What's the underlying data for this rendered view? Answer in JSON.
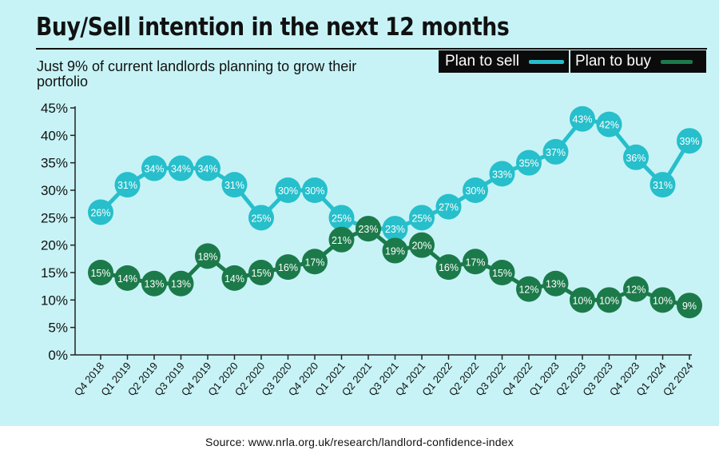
{
  "title": "Buy/Sell intention in the next 12 months",
  "subtitle": "Just 9% of current landlords planning to grow their portfolio",
  "source": "Source: www.nrla.org.uk/research/landlord-confidence-index",
  "colors": {
    "background": "#c7f3f6",
    "sell": "#26bfcb",
    "buy": "#1c7a4a",
    "label_text": "#ffffff",
    "axis": "#222222"
  },
  "chart_data": {
    "type": "line",
    "title": "Buy/Sell intention in the next 12 months",
    "subtitle": "Just 9% of current landlords planning to grow their portfolio",
    "xlabel": "",
    "ylabel": "",
    "ylim": [
      0,
      45
    ],
    "yticks": [
      "0%",
      "5%",
      "10%",
      "15%",
      "20%",
      "25%",
      "30%",
      "35%",
      "40%",
      "45%"
    ],
    "grid": false,
    "legend": "top-right",
    "categories": [
      "Q4 2018",
      "Q1 2019",
      "Q2 2019",
      "Q3 2019",
      "Q4 2019",
      "Q1 2020",
      "Q2 2020",
      "Q3 2020",
      "Q4 2020",
      "Q1 2021",
      "Q2 2021",
      "Q3 2021",
      "Q4 2021",
      "Q1 2022",
      "Q2 2022",
      "Q3 2022",
      "Q4 2022",
      "Q1 2023",
      "Q2 2023",
      "Q3 2023",
      "Q4 2023",
      "Q1 2024",
      "Q2 2024"
    ],
    "series": [
      {
        "name": "Plan to sell",
        "color": "#26bfcb",
        "values": [
          26,
          31,
          34,
          34,
          34,
          31,
          25,
          30,
          30,
          25,
          23,
          23,
          25,
          27,
          30,
          33,
          35,
          37,
          43,
          42,
          36,
          31,
          39
        ]
      },
      {
        "name": "Plan to buy",
        "color": "#1c7a4a",
        "values": [
          15,
          14,
          13,
          13,
          18,
          14,
          15,
          16,
          17,
          21,
          23,
          19,
          20,
          16,
          17,
          15,
          12,
          13,
          10,
          10,
          12,
          10,
          9
        ]
      }
    ]
  }
}
